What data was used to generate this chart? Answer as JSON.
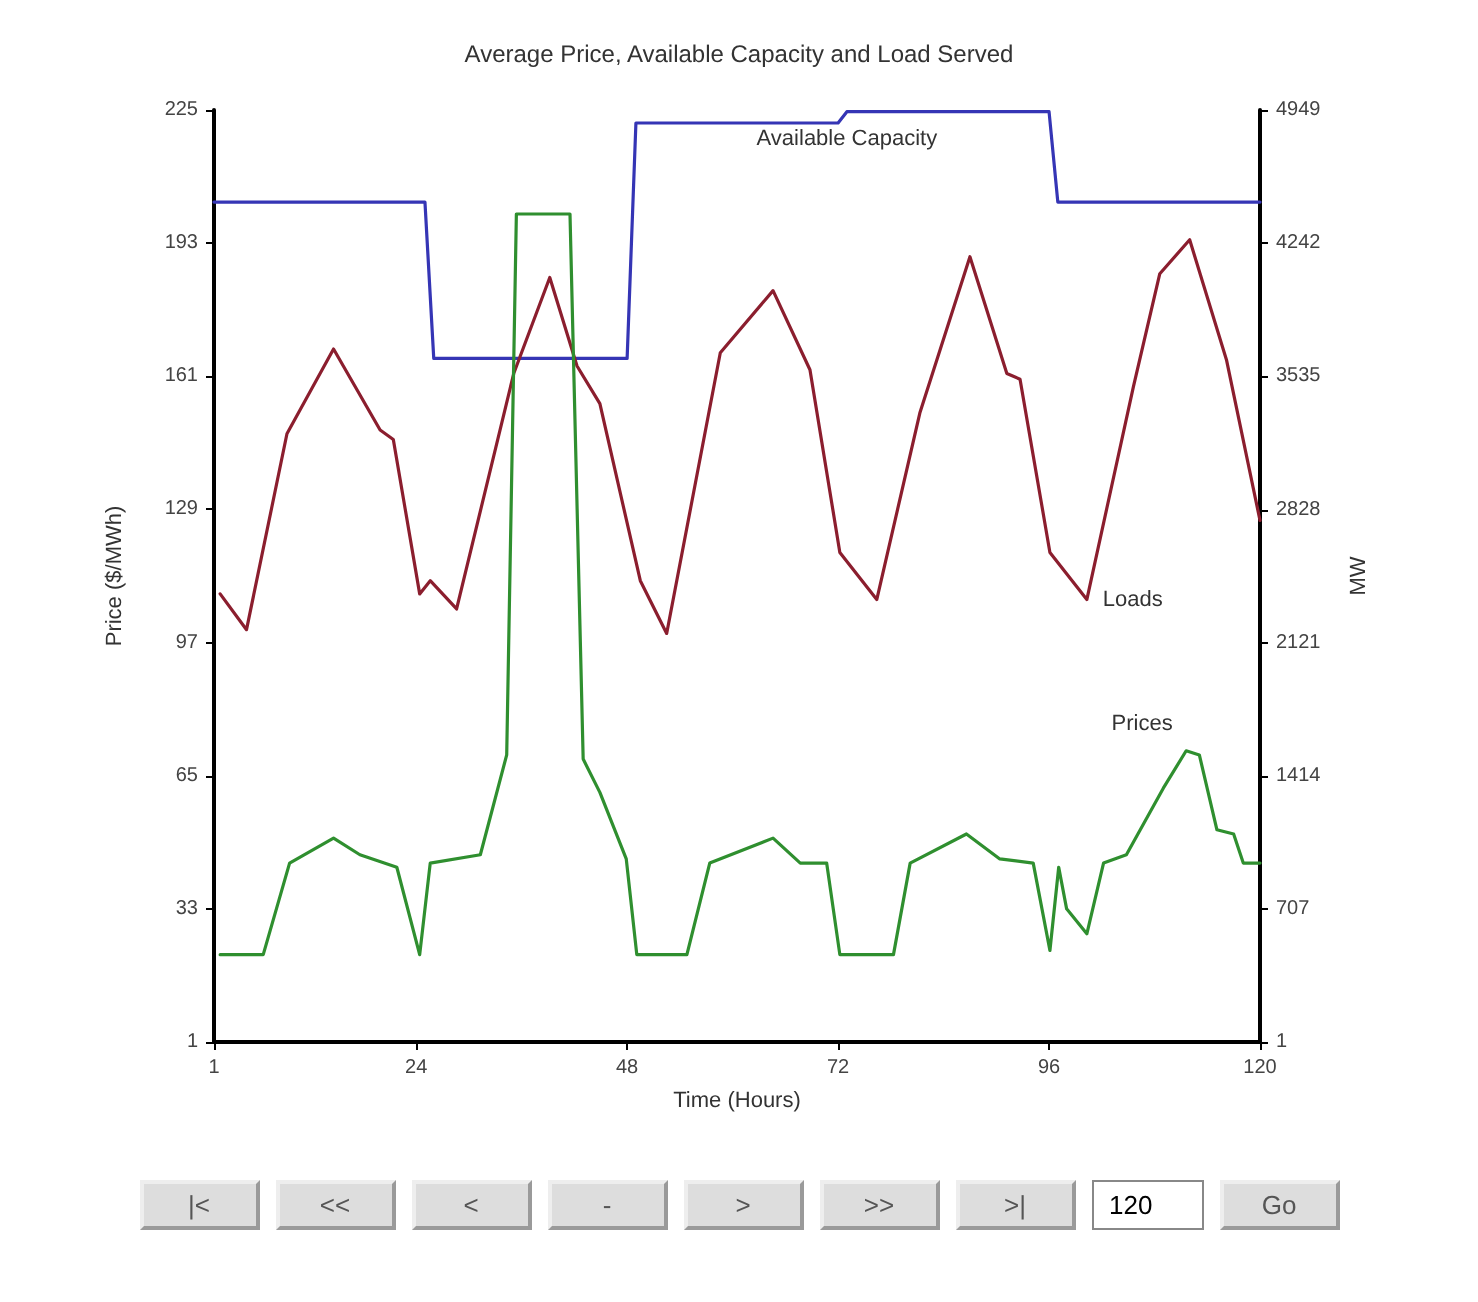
{
  "chart_data": {
    "type": "line",
    "title": "Average Price, Available Capacity and Load Served",
    "xlabel": "Time (Hours)",
    "ylabel": "Price ($/MWh)",
    "y2label": "MW",
    "xlim": [
      1,
      120
    ],
    "xticks": [
      1,
      24,
      48,
      72,
      96,
      120
    ],
    "ylim": [
      1,
      225
    ],
    "yticks": [
      1,
      33,
      65,
      97,
      129,
      161,
      193,
      225
    ],
    "y2lim": [
      1,
      4949
    ],
    "y2ticks": [
      1,
      707,
      1414,
      2121,
      2828,
      3535,
      4242,
      4949
    ],
    "grid": false,
    "legend": false,
    "marker": "none",
    "line_style": "solid",
    "series": [
      {
        "name": "Available Capacity",
        "color": "#3535b5",
        "axis": "y2",
        "x": [
          1,
          25,
          26,
          48,
          49,
          72,
          73,
          96,
          97,
          120
        ],
        "values": [
          4460,
          4460,
          3630,
          3630,
          4880,
          4880,
          4940,
          4940,
          4460,
          4460
        ]
      },
      {
        "name": "Loads",
        "color": "#8b1e2e",
        "axis": "y2",
        "x": [
          1.7,
          4.7,
          9.3,
          14.6,
          19.9,
          21.4,
          24.4,
          25.6,
          28.6,
          35.1,
          39.2,
          42.3,
          44.9,
          49.5,
          52.5,
          58.6,
          64.6,
          68.8,
          72.2,
          76.4,
          81.3,
          87,
          91.2,
          92.7,
          96.1,
          100.3,
          105.6,
          108.6,
          112,
          116.2,
          120
        ],
        "values": [
          2380,
          2190,
          3230,
          3680,
          3250,
          3200,
          2380,
          2450,
          2300,
          3550,
          4060,
          3590,
          3390,
          2450,
          2170,
          3660,
          3990,
          3570,
          2600,
          2350,
          3340,
          4170,
          3550,
          3520,
          2600,
          2350,
          3480,
          4080,
          4260,
          3620,
          2770
        ]
      },
      {
        "name": "Prices",
        "color": "#2f8f2f",
        "x": [
          1.7,
          6.6,
          9.6,
          14.6,
          17.6,
          21.8,
          24.4,
          25.6,
          31.3,
          34.3,
          35.4,
          41.5,
          43,
          44.9,
          47.9,
          49.1,
          54.8,
          57.4,
          64.6,
          67.7,
          70.7,
          72.2,
          78.3,
          80.2,
          86.6,
          90.4,
          94.2,
          96.1,
          97.1,
          98,
          100.3,
          102.2,
          104.8,
          109,
          111.6,
          113.1,
          115.1,
          117,
          118.1,
          120
        ],
        "values": [
          22,
          22,
          44,
          50,
          46,
          43,
          22,
          44,
          46,
          70,
          200,
          200,
          69,
          61,
          45,
          22,
          22,
          44,
          50,
          44,
          44,
          22,
          22,
          44,
          51,
          45,
          44,
          23,
          43,
          33,
          27,
          44,
          46,
          62,
          71,
          70,
          52,
          51,
          44,
          44
        ]
      }
    ],
    "annotations": [
      "|<",
      "<<",
      "<",
      "-",
      ">",
      ">>",
      ">|",
      "120",
      "Go"
    ]
  }
}
